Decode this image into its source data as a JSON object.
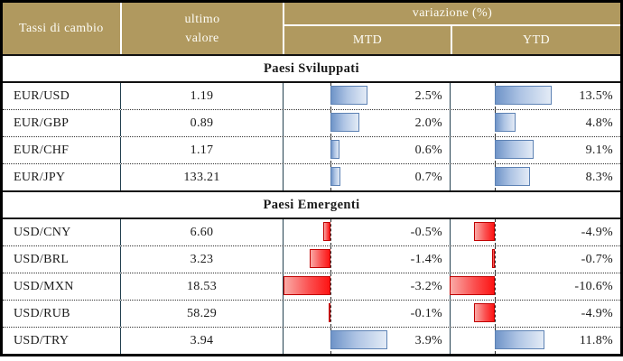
{
  "table": {
    "header": {
      "col1": "Tassi di cambio",
      "col2_line1": "ultimo",
      "col2_line2": "valore",
      "variazione": "variazione (%)",
      "mtd": "MTD",
      "ytd": "YTD"
    },
    "sections": [
      {
        "label": "Paesi Sviluppati",
        "rows": [
          {
            "pair": "EUR/USD",
            "value": "1.19",
            "mtd": 2.5,
            "mtd_label": "2.5%",
            "ytd": 13.5,
            "ytd_label": "13.5%"
          },
          {
            "pair": "EUR/GBP",
            "value": "0.89",
            "mtd": 2.0,
            "mtd_label": "2.0%",
            "ytd": 4.8,
            "ytd_label": "4.8%"
          },
          {
            "pair": "EUR/CHF",
            "value": "1.17",
            "mtd": 0.6,
            "mtd_label": "0.6%",
            "ytd": 9.1,
            "ytd_label": "9.1%"
          },
          {
            "pair": "EUR/JPY",
            "value": "133.21",
            "mtd": 0.7,
            "mtd_label": "0.7%",
            "ytd": 8.3,
            "ytd_label": "8.3%"
          }
        ]
      },
      {
        "label": "Paesi Emergenti",
        "rows": [
          {
            "pair": "USD/CNY",
            "value": "6.60",
            "mtd": -0.5,
            "mtd_label": "-0.5%",
            "ytd": -4.9,
            "ytd_label": "-4.9%"
          },
          {
            "pair": "USD/BRL",
            "value": "3.23",
            "mtd": -1.4,
            "mtd_label": "-1.4%",
            "ytd": -0.7,
            "ytd_label": "-0.7%"
          },
          {
            "pair": "USD/MXN",
            "value": "18.53",
            "mtd": -3.2,
            "mtd_label": "-3.2%",
            "ytd": -10.6,
            "ytd_label": "-10.6%"
          },
          {
            "pair": "USD/RUB",
            "value": "58.29",
            "mtd": -0.1,
            "mtd_label": "-0.1%",
            "ytd": -4.9,
            "ytd_label": "-4.9%"
          },
          {
            "pair": "USD/TRY",
            "value": "3.94",
            "mtd": 3.9,
            "mtd_label": "3.9%",
            "ytd": 11.8,
            "ytd_label": "11.8%"
          }
        ]
      }
    ],
    "colors": {
      "header_bg": "#b0995f",
      "header_text": "#fdfcf5",
      "positive_bar": "#6f94c8",
      "positive_bar_border": "#5d82b4",
      "negative_bar": "#fd1414",
      "negative_bar_border": "#c00000",
      "column_divider": "#23404f",
      "outer_border": "#000000"
    }
  },
  "chart_data": {
    "type": "table",
    "title": "Tassi di cambio",
    "columns": [
      "Tassi di cambio",
      "ultimo valore",
      "variazione (%) MTD",
      "variazione (%) YTD"
    ],
    "sections": [
      {
        "name": "Paesi Sviluppati",
        "rows": [
          [
            "EUR/USD",
            1.19,
            2.5,
            13.5
          ],
          [
            "EUR/GBP",
            0.89,
            2.0,
            4.8
          ],
          [
            "EUR/CHF",
            1.17,
            0.6,
            9.1
          ],
          [
            "EUR/JPY",
            133.21,
            0.7,
            8.3
          ]
        ]
      },
      {
        "name": "Paesi Emergenti",
        "rows": [
          [
            "USD/CNY",
            6.6,
            -0.5,
            -4.9
          ],
          [
            "USD/BRL",
            3.23,
            -1.4,
            -0.7
          ],
          [
            "USD/MXN",
            18.53,
            -3.2,
            -10.6
          ],
          [
            "USD/RUB",
            58.29,
            -0.1,
            -4.9
          ],
          [
            "USD/TRY",
            3.94,
            3.9,
            11.8
          ]
        ]
      }
    ],
    "legend": "in-cell data bars: blue = positive variation, red = negative variation; dashed line = zero axis",
    "grid": "dotted row separators, solid section separators"
  }
}
